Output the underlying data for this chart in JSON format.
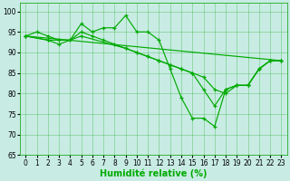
{
  "background_color": "#c8ece4",
  "grid_color": "#22aa22",
  "line_color": "#00aa00",
  "xlabel": "Humidité relative (%)",
  "ylim": [
    65,
    102
  ],
  "xlim": [
    -0.5,
    23.5
  ],
  "yticks": [
    65,
    70,
    75,
    80,
    85,
    90,
    95,
    100
  ],
  "xticks": [
    0,
    1,
    2,
    3,
    4,
    5,
    6,
    7,
    8,
    9,
    10,
    11,
    12,
    13,
    14,
    15,
    16,
    17,
    18,
    19,
    20,
    21,
    22,
    23
  ],
  "tick_fontsize": 5.5,
  "xlabel_fontsize": 7.0,
  "series": [
    {
      "x": [
        0,
        1,
        2,
        3,
        4,
        5,
        6,
        7,
        8,
        9,
        10,
        11,
        12,
        13,
        14,
        15,
        16,
        17,
        18,
        19,
        20,
        21,
        22,
        23
      ],
      "y": [
        94,
        95,
        94,
        93,
        93,
        97,
        95,
        96,
        96,
        99,
        95,
        95,
        93,
        86,
        79,
        74,
        74,
        72,
        81,
        82,
        82,
        86,
        88,
        88
      ],
      "marker": true
    },
    {
      "x": [
        0,
        2,
        3,
        4,
        5,
        6,
        7,
        8,
        9,
        10,
        11,
        12,
        13,
        14,
        15,
        16,
        17,
        18,
        19,
        20,
        21,
        22,
        23
      ],
      "y": [
        94,
        93,
        93,
        93,
        95,
        94,
        93,
        92,
        91,
        90,
        89,
        88,
        87,
        86,
        85,
        84,
        81,
        80,
        82,
        82,
        86,
        88,
        88
      ],
      "marker": true
    },
    {
      "x": [
        0,
        2,
        3,
        5,
        9,
        10,
        11,
        12,
        13,
        14,
        15,
        16,
        17,
        18,
        19,
        20,
        21,
        22,
        23
      ],
      "y": [
        94,
        93,
        92,
        94,
        91,
        90,
        89,
        88,
        87,
        86,
        85,
        81,
        77,
        81,
        82,
        82,
        86,
        88,
        88
      ],
      "marker": true
    },
    {
      "x": [
        0,
        23
      ],
      "y": [
        94,
        88
      ],
      "marker": false
    }
  ]
}
